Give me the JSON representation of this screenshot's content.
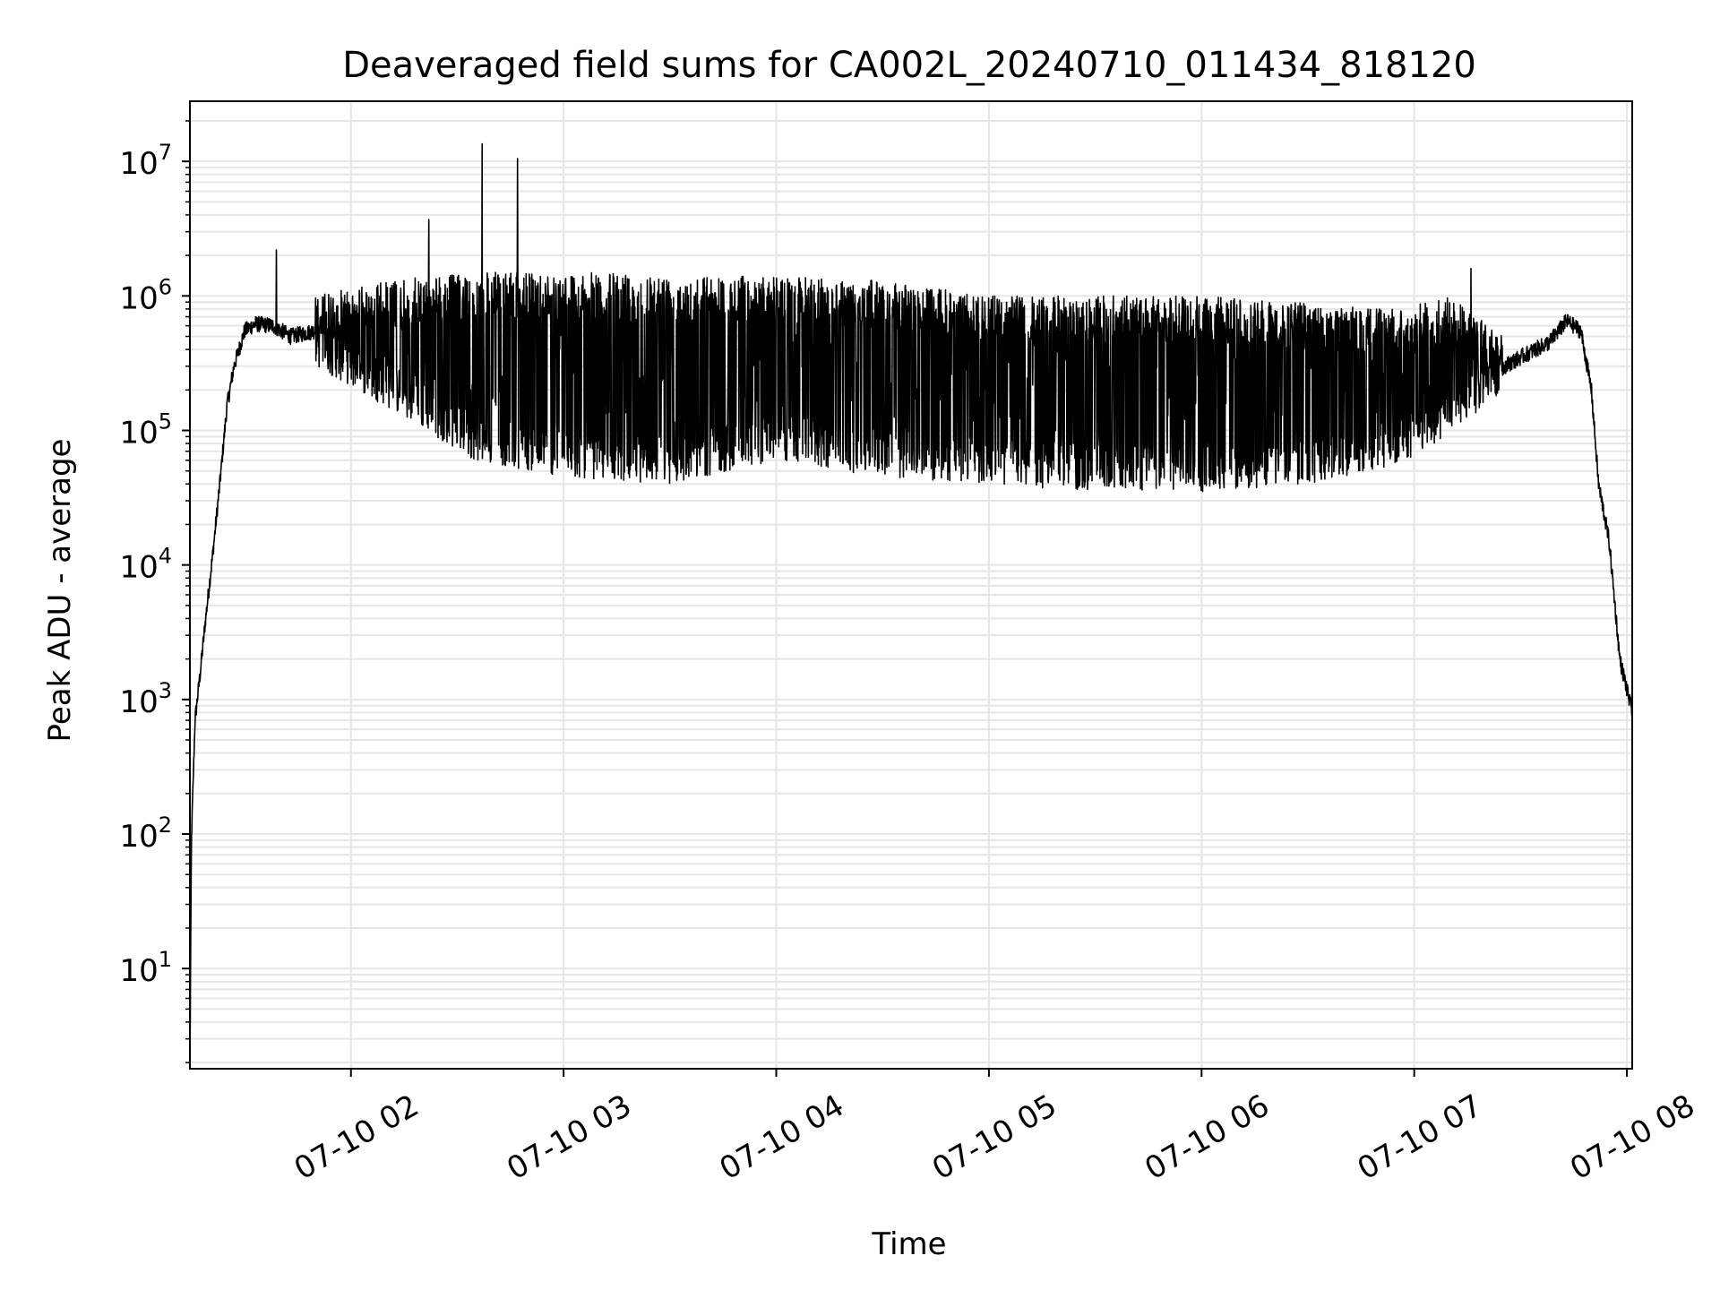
{
  "chart_data": {
    "type": "line",
    "title": "Deaveraged field sums for CA002L_20240710_011434_818120",
    "xlabel": "Time",
    "ylabel": "Peak ADU - average",
    "y_scale": "log",
    "ylim": [
      1.8,
      28000000
    ],
    "xlim": [
      "07-10 01:14:34",
      "07-10 08:01:30"
    ],
    "grid": "both (major and minor)",
    "line_color": "#000000",
    "x_ticks": [
      {
        "label": "07-10 02",
        "value": "07-10 02:00"
      },
      {
        "label": "07-10 03",
        "value": "07-10 03:00"
      },
      {
        "label": "07-10 04",
        "value": "07-10 04:00"
      },
      {
        "label": "07-10 05",
        "value": "07-10 05:00"
      },
      {
        "label": "07-10 06",
        "value": "07-10 06:00"
      },
      {
        "label": "07-10 07",
        "value": "07-10 07:00"
      },
      {
        "label": "07-10 08",
        "value": "07-10 08:00"
      }
    ],
    "y_ticks": [
      {
        "base": "10",
        "exp": "1",
        "value": 10
      },
      {
        "base": "10",
        "exp": "2",
        "value": 100
      },
      {
        "base": "10",
        "exp": "3",
        "value": 1000
      },
      {
        "base": "10",
        "exp": "4",
        "value": 10000
      },
      {
        "base": "10",
        "exp": "5",
        "value": 100000
      },
      {
        "base": "10",
        "exp": "6",
        "value": 1000000
      },
      {
        "base": "10",
        "exp": "7",
        "value": 10000000
      }
    ],
    "series_points": [
      [
        "07-10 01:14:34",
        2
      ],
      [
        "07-10 01:15:00",
        90
      ],
      [
        "07-10 01:16:00",
        700
      ],
      [
        "07-10 01:17:30",
        1600
      ],
      [
        "07-10 01:19:00",
        4000
      ],
      [
        "07-10 01:21:00",
        12000
      ],
      [
        "07-10 01:23:00",
        40000
      ],
      [
        "07-10 01:25:00",
        150000
      ],
      [
        "07-10 01:27:00",
        300000
      ],
      [
        "07-10 01:30:00",
        550000
      ],
      [
        "07-10 01:33:00",
        620000
      ],
      [
        "07-10 01:38:00",
        600000
      ],
      [
        "07-10 01:43:00",
        500000
      ],
      [
        "07-10 01:50:00",
        550000
      ],
      [
        "07-10 01:57:00",
        700000
      ],
      [
        "07-10 02:05:00",
        800000
      ],
      [
        "07-10 02:20:00",
        900000
      ],
      [
        "07-10 02:40:00",
        850000
      ],
      [
        "07-10 03:00:00",
        800000
      ],
      [
        "07-10 03:30:00",
        750000
      ],
      [
        "07-10 04:00:00",
        650000
      ],
      [
        "07-10 04:30:00",
        450000
      ],
      [
        "07-10 05:00:00",
        250000
      ],
      [
        "07-10 05:30:00",
        130000
      ],
      [
        "07-10 06:00:00",
        100000
      ],
      [
        "07-10 06:30:00",
        70000
      ],
      [
        "07-10 06:50:00",
        80000
      ],
      [
        "07-10 07:00:00",
        100000
      ],
      [
        "07-10 07:10:00",
        150000
      ],
      [
        "07-10 07:20:00",
        250000
      ],
      [
        "07-10 07:30:00",
        350000
      ],
      [
        "07-10 07:38:00",
        450000
      ],
      [
        "07-10 07:43:00",
        650000
      ],
      [
        "07-10 07:47:00",
        550000
      ],
      [
        "07-10 07:50:00",
        200000
      ],
      [
        "07-10 07:52:00",
        40000
      ],
      [
        "07-10 07:55:00",
        15000
      ],
      [
        "07-10 07:58:00",
        2000
      ],
      [
        "07-10 08:01:30",
        800
      ]
    ],
    "series_spikes": [
      [
        "07-10 01:39:00",
        2200000
      ],
      [
        "07-10 02:22:00",
        3700000
      ],
      [
        "07-10 02:37:00",
        13500000
      ],
      [
        "07-10 02:47:00",
        10500000
      ],
      [
        "07-10 07:16:00",
        1600000
      ]
    ],
    "noise_band": [
      [
        "07-10 01:50:00",
        1000000,
        300000
      ],
      [
        "07-10 02:10:00",
        1300000,
        150000
      ],
      [
        "07-10 02:35:00",
        1500000,
        60000
      ],
      [
        "07-10 03:00:00",
        1500000,
        45000
      ],
      [
        "07-10 03:30:00",
        1450000,
        40000
      ],
      [
        "07-10 04:00:00",
        1400000,
        60000
      ],
      [
        "07-10 04:30:00",
        1300000,
        45000
      ],
      [
        "07-10 05:00:00",
        1000000,
        40000
      ],
      [
        "07-10 05:30:00",
        1000000,
        35000
      ],
      [
        "07-10 06:00:00",
        1000000,
        35000
      ],
      [
        "07-10 06:30:00",
        900000,
        40000
      ],
      [
        "07-10 06:55:00",
        800000,
        55000
      ],
      [
        "07-10 07:10:00",
        1000000,
        90000
      ],
      [
        "07-10 07:25:00",
        500000,
        200000
      ]
    ]
  }
}
